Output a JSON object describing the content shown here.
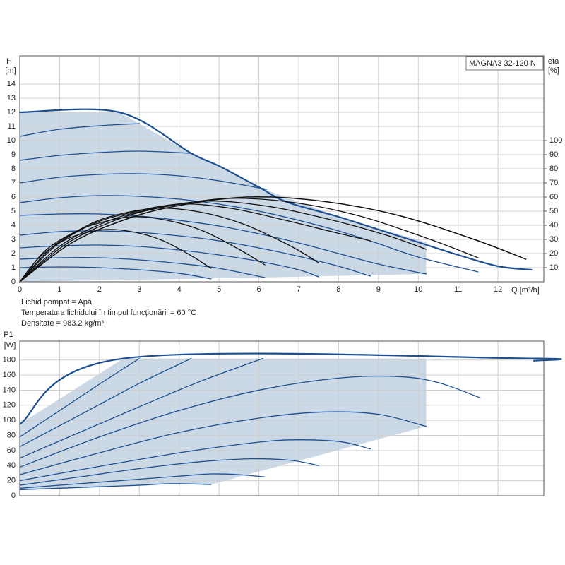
{
  "chart_data": [
    {
      "type": "line",
      "ylabel": "H",
      "yunit": "[m]",
      "y2label": "eta",
      "y2unit": "[%]",
      "xlabel": "Q [m³/h]",
      "annotation": "MAGNA3 32-120 N",
      "notes": [
        "Lichid pompat = Apă",
        "Temperatura lichidului în timpul funcţionării = 60 °C",
        "Densitate = 983.2 kg/m³"
      ],
      "xlim": [
        0,
        13.15
      ],
      "ylim": [
        0,
        16
      ],
      "y2lim": [
        0,
        160
      ],
      "xticks": [
        0,
        1,
        2,
        3,
        4,
        5,
        6,
        7,
        8,
        9,
        10,
        11,
        12
      ],
      "yticks": [
        0,
        1,
        2,
        3,
        4,
        5,
        6,
        7,
        8,
        9,
        10,
        11,
        12,
        13,
        14
      ],
      "y2ticks": [
        10,
        20,
        30,
        40,
        50,
        60,
        70,
        80,
        90,
        100
      ],
      "show_xtick_labels": true,
      "grid": true,
      "shade_color": "#cbd8e6",
      "shaded_region": {
        "x": [
          0,
          0,
          2.5,
          4.3,
          6,
          8,
          10.2,
          10.2,
          8,
          6,
          4,
          2,
          0
        ],
        "values": [
          0,
          12,
          12,
          9.1,
          6.7,
          4.6,
          2.8,
          0.55,
          0.42,
          0.3,
          0.2,
          0.1,
          0
        ]
      },
      "series": [
        {
          "color": "#1d4f91",
          "line_width": 2.2,
          "x": [
            0,
            2.5,
            4.3,
            5,
            6,
            6.7,
            8,
            9,
            10,
            11,
            12,
            12.84
          ],
          "values": [
            12,
            12,
            9.1,
            8.2,
            6.7,
            5.65,
            4.6,
            3.7,
            2.8,
            1.9,
            1.1,
            0.85
          ]
        },
        {
          "color": "#1d4f91",
          "line_width": 1.3,
          "x": [
            0,
            1,
            2,
            3
          ],
          "values": [
            10.3,
            10.8,
            11.05,
            11.2
          ]
        },
        {
          "color": "#1d4f91",
          "line_width": 1.3,
          "x": [
            0,
            1,
            2,
            3,
            4.3
          ],
          "values": [
            8.6,
            8.95,
            9.15,
            9.25,
            9.1
          ]
        },
        {
          "color": "#1d4f91",
          "line_width": 1.3,
          "x": [
            0,
            1,
            2,
            3,
            4,
            5,
            6.2
          ],
          "values": [
            7.0,
            7.4,
            7.6,
            7.65,
            7.5,
            7.15,
            6.55
          ]
        },
        {
          "color": "#1d4f91",
          "line_width": 1.3,
          "x": [
            0,
            1,
            2,
            3,
            4,
            5,
            6,
            7,
            8,
            9,
            10,
            11.5
          ],
          "values": [
            5.6,
            5.95,
            6.1,
            6.05,
            5.85,
            5.5,
            5.0,
            4.35,
            3.6,
            2.7,
            1.75,
            0.7
          ]
        },
        {
          "color": "#1d4f91",
          "line_width": 1.3,
          "x": [
            0,
            1,
            2,
            3,
            4,
            5,
            6,
            7,
            8,
            9,
            10.2
          ],
          "values": [
            4.7,
            4.8,
            4.8,
            4.65,
            4.35,
            3.95,
            3.4,
            2.75,
            2.0,
            1.25,
            0.55
          ]
        },
        {
          "color": "#1d4f91",
          "line_width": 1.3,
          "x": [
            0,
            1,
            2,
            3,
            4,
            5,
            6,
            7,
            8,
            8.8
          ],
          "values": [
            3.3,
            3.55,
            3.6,
            3.5,
            3.25,
            2.9,
            2.4,
            1.8,
            1.1,
            0.4
          ]
        },
        {
          "color": "#1d4f91",
          "line_width": 1.3,
          "x": [
            0,
            1,
            2,
            3,
            4,
            5,
            6,
            7,
            7.5
          ],
          "values": [
            2.4,
            2.55,
            2.6,
            2.5,
            2.25,
            1.9,
            1.45,
            0.85,
            0.35
          ]
        },
        {
          "color": "#1d4f91",
          "line_width": 1.3,
          "x": [
            0,
            1,
            2,
            3,
            4,
            5,
            6.15
          ],
          "values": [
            1.6,
            1.7,
            1.7,
            1.55,
            1.3,
            0.95,
            0.3
          ]
        },
        {
          "color": "#1d4f91",
          "line_width": 1.3,
          "x": [
            0,
            1,
            2,
            3,
            4,
            4.8
          ],
          "values": [
            1.0,
            1.05,
            1.0,
            0.85,
            0.6,
            0.2
          ]
        },
        {
          "color": "#111111",
          "line_width": 1.5,
          "axis": "y2",
          "x": [
            0,
            1.27,
            2.54,
            3.81,
            5.7,
            7.6,
            9.5,
            11.4,
            12.7
          ],
          "values": [
            0,
            27,
            43,
            53,
            60,
            57,
            47,
            30,
            16
          ]
        },
        {
          "color": "#111111",
          "line_width": 1.3,
          "axis": "y2",
          "x": [
            0,
            1.15,
            2.3,
            3.45,
            5.2,
            6.9,
            8.6,
            10.35,
            11.5
          ],
          "values": [
            0,
            26.5,
            42.5,
            52,
            59,
            56,
            46,
            29.5,
            17
          ]
        },
        {
          "color": "#111111",
          "line_width": 1.3,
          "axis": "y2",
          "x": [
            0,
            1.02,
            2.04,
            3.06,
            4.6,
            6.1,
            7.65,
            9.2,
            10.2
          ],
          "values": [
            0,
            25.5,
            41,
            50,
            57,
            54,
            45,
            33,
            23
          ]
        },
        {
          "color": "#111111",
          "line_width": 1.3,
          "axis": "y2",
          "x": [
            0,
            0.88,
            1.76,
            2.64,
            4.0,
            5.3,
            6.6,
            7.9,
            8.8
          ],
          "values": [
            0,
            25,
            40,
            48,
            55,
            52,
            44,
            35,
            29
          ]
        },
        {
          "color": "#111111",
          "line_width": 1.3,
          "axis": "y2",
          "x": [
            0,
            0.75,
            1.5,
            2.25,
            3.4,
            4.5,
            5.6,
            6.75,
            7.5
          ],
          "values": [
            0,
            23,
            37,
            46,
            52,
            49.5,
            41,
            26,
            13.5
          ]
        },
        {
          "color": "#111111",
          "line_width": 1.3,
          "axis": "y2",
          "x": [
            0,
            0.6,
            1.23,
            1.85,
            2.8,
            3.7,
            4.6,
            5.5,
            6.15
          ],
          "values": [
            0,
            21,
            33,
            40.5,
            46,
            43.5,
            36,
            23,
            12
          ]
        },
        {
          "color": "#111111",
          "line_width": 1.3,
          "axis": "y2",
          "x": [
            0,
            0.48,
            0.96,
            1.44,
            2.16,
            2.9,
            3.6,
            4.3,
            4.8
          ],
          "values": [
            0,
            17,
            27,
            33,
            37,
            35,
            29,
            18.5,
            9.5
          ]
        }
      ]
    },
    {
      "type": "line",
      "ylabel": "P1",
      "yunit": "[W]",
      "xlim": [
        0,
        13.15
      ],
      "ylim": [
        0,
        205
      ],
      "xticks": [
        0,
        1,
        2,
        3,
        4,
        5,
        6,
        7,
        8,
        9,
        10,
        11,
        12
      ],
      "yticks": [
        0,
        20,
        40,
        60,
        80,
        100,
        120,
        140,
        160,
        180
      ],
      "show_xtick_labels": false,
      "grid": true,
      "shade_color": "#cbd8e6",
      "shaded_region": {
        "x": [
          0,
          0,
          2.6,
          10.2,
          10.2,
          4.8,
          3.8,
          2,
          0
        ],
        "values": [
          8,
          95,
          182,
          182,
          92,
          15,
          16,
          12,
          8
        ]
      },
      "series": [
        {
          "color": "#1d4f91",
          "line_width": 2.2,
          "x": [
            0,
            2.6,
            12.8,
            12.9
          ],
          "values": [
            95,
            182,
            182,
            179
          ]
        },
        {
          "color": "#1d4f91",
          "line_width": 1.3,
          "x": [
            0,
            1,
            2,
            3
          ],
          "values": [
            78,
            113,
            148,
            182
          ]
        },
        {
          "color": "#1d4f91",
          "line_width": 1.3,
          "x": [
            0,
            1,
            2,
            3,
            4.3
          ],
          "values": [
            65,
            93,
            121,
            149,
            182
          ]
        },
        {
          "color": "#1d4f91",
          "line_width": 1.3,
          "x": [
            0,
            1.5,
            3,
            4.5,
            6.1
          ],
          "values": [
            50,
            84,
            118,
            151,
            182
          ]
        },
        {
          "color": "#1d4f91",
          "line_width": 1.3,
          "x": [
            0,
            2,
            4,
            6,
            8,
            9.5,
            10.5,
            11.55
          ],
          "values": [
            38,
            78,
            113,
            140,
            156,
            158,
            150,
            130
          ]
        },
        {
          "color": "#1d4f91",
          "line_width": 1.3,
          "x": [
            0,
            2,
            4,
            6,
            7.6,
            9,
            10.2
          ],
          "values": [
            28,
            57,
            84,
            103,
            111,
            108,
            92
          ]
        },
        {
          "color": "#1d4f91",
          "line_width": 1.3,
          "x": [
            0,
            2,
            4,
            5.5,
            6.7,
            8,
            8.8
          ],
          "values": [
            20,
            39,
            57,
            68,
            74,
            72,
            62
          ]
        },
        {
          "color": "#1d4f91",
          "line_width": 1.3,
          "x": [
            0,
            1.5,
            3,
            4.5,
            5.8,
            6.8,
            7.5
          ],
          "values": [
            14,
            25,
            36,
            45,
            49,
            47,
            40
          ]
        },
        {
          "color": "#1d4f91",
          "line_width": 1.3,
          "x": [
            0,
            1.5,
            3,
            4,
            4.8,
            5.5,
            6.15
          ],
          "values": [
            10,
            16,
            22,
            26,
            29,
            28,
            25
          ]
        },
        {
          "color": "#1d4f91",
          "line_width": 1.3,
          "x": [
            0,
            1,
            2,
            3,
            3.8,
            4.8
          ],
          "values": [
            8,
            10,
            12,
            14,
            16,
            15
          ]
        }
      ]
    }
  ]
}
